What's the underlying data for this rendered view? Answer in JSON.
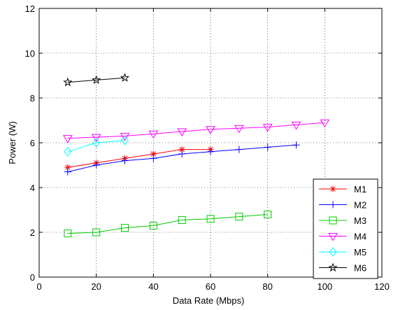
{
  "chart_data": {
    "type": "line",
    "title": "",
    "xlabel": "Data Rate (Mbps)",
    "ylabel": "Power (W)",
    "xlim": [
      0,
      120
    ],
    "ylim": [
      0,
      12
    ],
    "xticks": [
      0,
      20,
      40,
      60,
      80,
      100,
      120
    ],
    "yticks": [
      0,
      2,
      4,
      6,
      8,
      10,
      12
    ],
    "grid": true,
    "legend_position": "bottom-right",
    "series": [
      {
        "name": "M1",
        "color": "#ff0000",
        "marker": "star",
        "x": [
          10,
          20,
          30,
          40,
          50,
          60
        ],
        "y": [
          4.9,
          5.1,
          5.3,
          5.5,
          5.7,
          5.7
        ]
      },
      {
        "name": "M2",
        "color": "#0000ff",
        "marker": "plus",
        "x": [
          10,
          20,
          30,
          40,
          50,
          60,
          70,
          80,
          90
        ],
        "y": [
          4.7,
          5.0,
          5.2,
          5.3,
          5.5,
          5.6,
          5.7,
          5.8,
          5.9
        ]
      },
      {
        "name": "M3",
        "color": "#00cc00",
        "marker": "square",
        "x": [
          10,
          20,
          30,
          40,
          50,
          60,
          70,
          80
        ],
        "y": [
          1.95,
          2.0,
          2.2,
          2.3,
          2.55,
          2.6,
          2.7,
          2.8
        ]
      },
      {
        "name": "M4",
        "color": "#ff00ff",
        "marker": "triangle-down",
        "x": [
          10,
          20,
          30,
          40,
          50,
          60,
          70,
          80,
          90,
          100
        ],
        "y": [
          6.2,
          6.25,
          6.3,
          6.4,
          6.5,
          6.6,
          6.65,
          6.7,
          6.8,
          6.9
        ]
      },
      {
        "name": "M5",
        "color": "#00ffff",
        "marker": "diamond",
        "x": [
          10,
          20,
          30
        ],
        "y": [
          5.6,
          6.0,
          6.1
        ]
      },
      {
        "name": "M6",
        "color": "#000000",
        "marker": "pentagram",
        "x": [
          10,
          20,
          30
        ],
        "y": [
          8.7,
          8.8,
          8.9
        ]
      }
    ]
  }
}
